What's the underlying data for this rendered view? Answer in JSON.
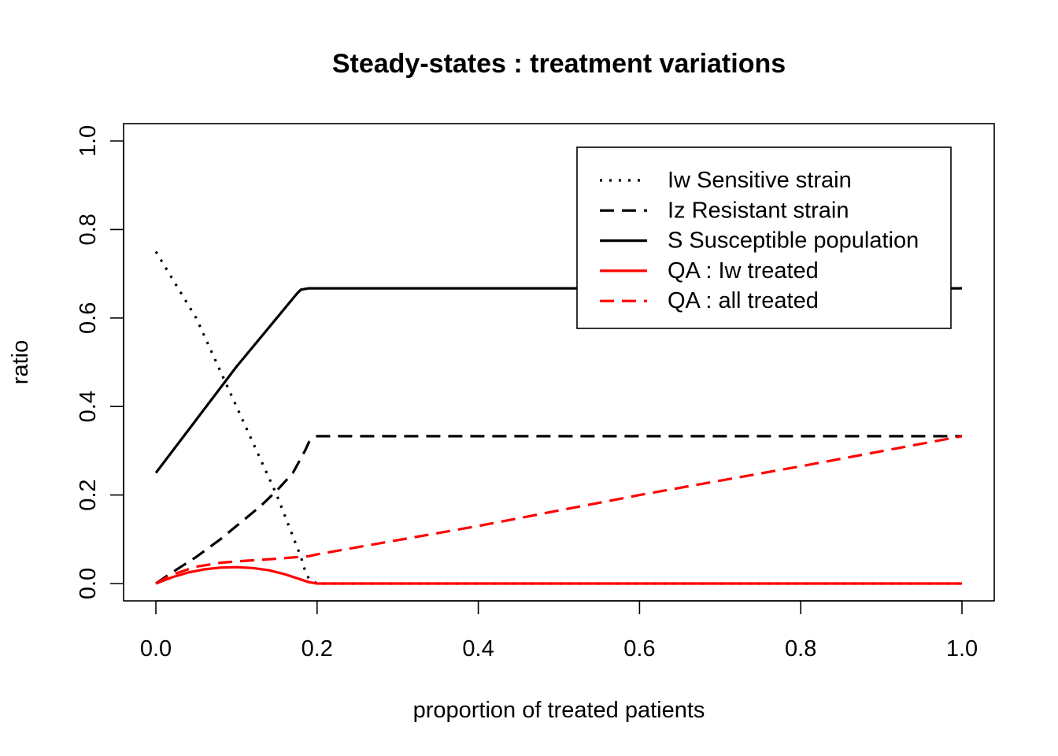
{
  "chart_data": {
    "type": "line",
    "title": "Steady-states : treatment variations",
    "xlabel": "proportion of treated patients",
    "ylabel": "ratio",
    "xlim": [
      0,
      1
    ],
    "ylim": [
      0,
      1
    ],
    "x_ticks": [
      "0.0",
      "0.2",
      "0.4",
      "0.6",
      "0.8",
      "1.0"
    ],
    "y_ticks": [
      "0.0",
      "0.2",
      "0.4",
      "0.6",
      "0.8",
      "1.0"
    ],
    "grid": false,
    "legend_position": "top-right",
    "series": [
      {
        "name": "Iw Sensitive strain",
        "color": "#000000",
        "style": "dotted",
        "x": [
          0.0,
          0.05,
          0.1,
          0.15,
          0.18,
          0.185,
          0.19,
          0.2,
          1.0
        ],
        "y": [
          0.75,
          0.6,
          0.4,
          0.2,
          0.06,
          0.03,
          0.01,
          0.0,
          0.0
        ]
      },
      {
        "name": "Iz Resistant strain",
        "color": "#000000",
        "style": "dashed",
        "x": [
          0.0,
          0.02,
          0.05,
          0.08,
          0.1,
          0.13,
          0.15,
          0.17,
          0.185,
          0.19,
          0.2,
          1.0
        ],
        "y": [
          0.0,
          0.025,
          0.06,
          0.1,
          0.13,
          0.175,
          0.21,
          0.25,
          0.3,
          0.32,
          0.333,
          0.333
        ]
      },
      {
        "name": "S Susceptible population",
        "color": "#000000",
        "style": "solid",
        "x": [
          0.0,
          0.05,
          0.1,
          0.15,
          0.175,
          0.18,
          0.19,
          1.0
        ],
        "y": [
          0.25,
          0.37,
          0.49,
          0.6,
          0.655,
          0.664,
          0.667,
          0.667
        ]
      },
      {
        "name": "QA : Iw treated",
        "color": "#ff0000",
        "style": "solid",
        "x": [
          0.0,
          0.02,
          0.04,
          0.06,
          0.08,
          0.1,
          0.12,
          0.14,
          0.16,
          0.18,
          0.19,
          0.2,
          1.0
        ],
        "y": [
          0.0,
          0.014,
          0.025,
          0.032,
          0.036,
          0.037,
          0.035,
          0.03,
          0.021,
          0.009,
          0.003,
          0.0,
          0.0
        ]
      },
      {
        "name": "QA : all treated",
        "color": "#ff0000",
        "style": "dashed",
        "x": [
          0.0,
          0.02,
          0.05,
          0.08,
          0.1,
          0.15,
          0.19,
          0.2,
          0.4,
          0.6,
          0.8,
          1.0
        ],
        "y": [
          0.0,
          0.02,
          0.038,
          0.047,
          0.05,
          0.056,
          0.062,
          0.066,
          0.13,
          0.2,
          0.265,
          0.333
        ]
      }
    ]
  }
}
